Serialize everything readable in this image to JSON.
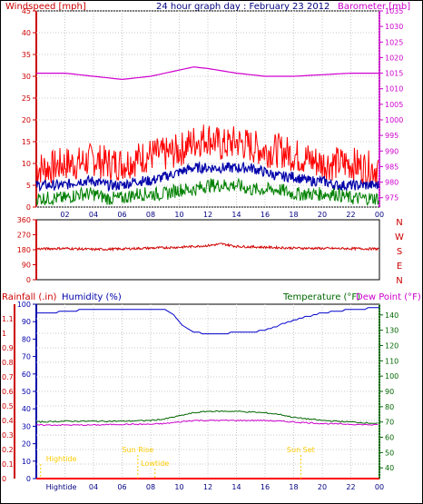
{
  "header": {
    "left_label": "Windspeed [mph]",
    "title": "24 hour graph day : February 23 2012",
    "right_label": "Barometer [mb]"
  },
  "panel_labels": {
    "rainfall": "Rainfall (.in)",
    "humidity": "Humidity (%)",
    "temperature": "Temperature (°F)",
    "dewpoint": "Dew Point (°F)"
  },
  "colors": {
    "windspeed_max": "#ff0000",
    "windspeed_avg": "#0000aa",
    "windspeed_min": "#008000",
    "barometer": "#d000d0",
    "direction": "#d00000",
    "humidity": "#0000cc",
    "temperature": "#006600",
    "dewpoint": "#cc00cc",
    "rainfall": "#ff0000",
    "events": "#ffcc00",
    "axis_left": "#cc0000",
    "axis_right_top": "#cc00cc",
    "axis_humidity": "#0000aa",
    "axis_temp": "#006600"
  },
  "chart_data": [
    {
      "type": "line",
      "panel": "wind",
      "x_ticks": [
        "02",
        "04",
        "06",
        "08",
        "10",
        "12",
        "14",
        "16",
        "18",
        "20",
        "22",
        "00"
      ],
      "xlim_hours": [
        0,
        24
      ],
      "y_left_ticks": [
        "0",
        "5",
        "10",
        "15",
        "20",
        "25",
        "30",
        "35",
        "40",
        "45"
      ],
      "ylim_left": [
        0,
        45
      ],
      "y_right_ticks": [
        "975",
        "980",
        "985",
        "990",
        "995",
        "1000",
        "1005",
        "1010",
        "1015",
        "1020",
        "1025",
        "1030",
        "1035"
      ],
      "ylim_right": [
        972,
        1035
      ],
      "series": [
        {
          "key": "windspeed_max",
          "axis": "left",
          "hours": [
            0,
            1,
            2,
            3,
            4,
            5,
            6,
            7,
            8,
            9,
            10,
            11,
            12,
            13,
            14,
            15,
            16,
            17,
            18,
            19,
            20,
            21,
            22,
            23,
            24
          ],
          "values": [
            9,
            9,
            10,
            10,
            11,
            10,
            10,
            11,
            12,
            12,
            13,
            15,
            16,
            14,
            15,
            14,
            13,
            13,
            12,
            11,
            10,
            10,
            10,
            9,
            9
          ]
        },
        {
          "key": "windspeed_avg",
          "axis": "left",
          "hours": [
            0,
            1,
            2,
            3,
            4,
            5,
            6,
            7,
            8,
            9,
            10,
            11,
            12,
            13,
            14,
            15,
            16,
            17,
            18,
            19,
            20,
            21,
            22,
            23,
            24
          ],
          "values": [
            5,
            5,
            5,
            6,
            6,
            5,
            5,
            6,
            6,
            7,
            8,
            9,
            9,
            9,
            9,
            9,
            8,
            7,
            7,
            6,
            6,
            5,
            5,
            5,
            5
          ]
        },
        {
          "key": "windspeed_min",
          "axis": "left",
          "hours": [
            0,
            1,
            2,
            3,
            4,
            5,
            6,
            7,
            8,
            9,
            10,
            11,
            12,
            13,
            14,
            15,
            16,
            17,
            18,
            19,
            20,
            21,
            22,
            23,
            24
          ],
          "values": [
            2,
            2,
            2,
            3,
            3,
            2,
            2,
            3,
            3,
            3,
            4,
            4,
            5,
            5,
            5,
            4,
            4,
            4,
            3,
            3,
            3,
            3,
            2,
            2,
            2
          ]
        },
        {
          "key": "barometer",
          "axis": "right",
          "hours": [
            0,
            2,
            4,
            6,
            8,
            10,
            11,
            12,
            14,
            16,
            18,
            20,
            22,
            24
          ],
          "values": [
            1015,
            1015,
            1014,
            1013,
            1014,
            1016,
            1017,
            1016.5,
            1015,
            1014,
            1014,
            1014.5,
            1015,
            1015
          ]
        }
      ]
    },
    {
      "type": "line",
      "panel": "direction",
      "y_left_ticks": [
        "0",
        "90",
        "180",
        "270",
        "360"
      ],
      "ylim": [
        0,
        360
      ],
      "y_right_ticks": [
        "N",
        "W",
        "S",
        "E",
        "N"
      ],
      "series": [
        {
          "key": "direction",
          "hours": [
            0,
            2,
            4,
            6,
            8,
            10,
            12,
            13,
            14,
            16,
            18,
            20,
            22,
            24
          ],
          "values": [
            185,
            188,
            182,
            185,
            190,
            195,
            205,
            215,
            200,
            195,
            190,
            188,
            187,
            185
          ]
        }
      ]
    },
    {
      "type": "line",
      "panel": "weather",
      "x_ticks": [
        "Hightide",
        "04",
        "06",
        "08",
        "10",
        "12",
        "14",
        "16",
        "18",
        "20",
        "22",
        "00"
      ],
      "y_left_ticks": [
        "0",
        "0.1",
        "0.2",
        "0.3",
        "0.4",
        "0.5",
        "0.6",
        "0.7",
        "0.8",
        "0.9",
        "1",
        "1.1"
      ],
      "ylim_left": [
        0,
        1.2
      ],
      "y_humidity_ticks": [
        "0",
        "10",
        "20",
        "30",
        "40",
        "50",
        "60",
        "70",
        "80",
        "90",
        "100"
      ],
      "ylim_humidity": [
        0,
        100
      ],
      "y_right_ticks": [
        "40",
        "50",
        "60",
        "70",
        "80",
        "90",
        "100",
        "110",
        "120",
        "130",
        "140"
      ],
      "ylim_right": [
        33,
        147
      ],
      "series": [
        {
          "key": "humidity",
          "axis": "humidity",
          "hours": [
            0,
            1,
            2,
            4,
            6,
            8,
            9,
            9.5,
            10,
            10.5,
            11,
            12,
            13,
            14,
            15,
            16,
            17,
            18,
            19,
            20,
            21,
            22,
            24
          ],
          "values": [
            95,
            95,
            96,
            97,
            97,
            97,
            97,
            95,
            90,
            86,
            84,
            83,
            83,
            84,
            84,
            85,
            88,
            91,
            93,
            95,
            96,
            97,
            98
          ]
        },
        {
          "key": "temperature",
          "axis": "right",
          "hours": [
            0,
            2,
            4,
            6,
            8,
            9,
            10,
            11,
            12,
            13,
            14,
            15,
            16,
            17,
            18,
            20,
            22,
            24
          ],
          "values": [
            70,
            70.5,
            70.5,
            70.5,
            71,
            72,
            74,
            76,
            77,
            77,
            77,
            76.5,
            76,
            75,
            73,
            71,
            70,
            69
          ]
        },
        {
          "key": "dewpoint",
          "axis": "right",
          "hours": [
            0,
            2,
            4,
            6,
            8,
            9,
            10,
            11,
            12,
            13,
            14,
            15,
            16,
            17,
            18,
            20,
            22,
            24
          ],
          "values": [
            68,
            68,
            68,
            68.5,
            68.5,
            69,
            70,
            71,
            71,
            71,
            71,
            71,
            71,
            70.5,
            70,
            69,
            68.5,
            68
          ]
        },
        {
          "key": "rainfall",
          "axis": "left",
          "hours": [
            0,
            24
          ],
          "values": [
            0,
            0
          ]
        }
      ],
      "events": [
        {
          "label": "Hightide",
          "hour": 0.3
        },
        {
          "label": "Sun Rise",
          "hour": 7.1
        },
        {
          "label": "Lowtide",
          "hour": 8.3
        },
        {
          "label": "Sun Set",
          "hour": 18.5
        }
      ]
    }
  ]
}
